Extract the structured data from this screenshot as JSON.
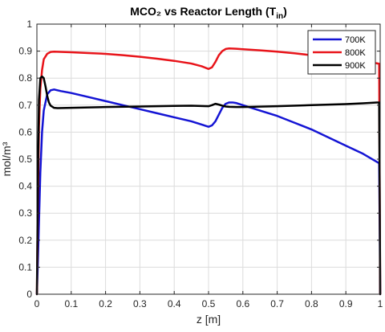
{
  "chart_data": {
    "type": "line",
    "title": "MCO₂ vs Reactor Length (T",
    "title_subscript": "in",
    "title_close": ")",
    "xlabel": "z [m]",
    "ylabel": "mol/m³",
    "xlim": [
      0,
      1
    ],
    "ylim": [
      0,
      1
    ],
    "xticks": [
      0,
      0.1,
      0.2,
      0.3,
      0.4,
      0.5,
      0.6,
      0.7,
      0.8,
      0.9,
      1
    ],
    "xtick_labels": [
      "0",
      "0.1",
      "0.2",
      "0.3",
      "0.4",
      "0.5",
      "0.6",
      "0.7",
      "0.8",
      "0.9",
      "1"
    ],
    "yticks": [
      0,
      0.1,
      0.2,
      0.3,
      0.4,
      0.5,
      0.6,
      0.7,
      0.8,
      0.9,
      1
    ],
    "ytick_labels": [
      "0",
      "0.1",
      "0.2",
      "0.3",
      "0.4",
      "0.5",
      "0.6",
      "0.7",
      "0.8",
      "0.9",
      "1"
    ],
    "grid": true,
    "legend_position": "top-right",
    "series": [
      {
        "name": "700K",
        "color": "#1414d4",
        "x": [
          0,
          0.005,
          0.01,
          0.015,
          0.02,
          0.03,
          0.04,
          0.05,
          0.07,
          0.1,
          0.15,
          0.2,
          0.25,
          0.3,
          0.35,
          0.4,
          0.45,
          0.5,
          0.51,
          0.52,
          0.53,
          0.54,
          0.55,
          0.56,
          0.57,
          0.58,
          0.6,
          0.65,
          0.7,
          0.75,
          0.8,
          0.85,
          0.9,
          0.95,
          0.99,
          0.997,
          0.999,
          1
        ],
        "y": [
          0,
          0.22,
          0.45,
          0.6,
          0.68,
          0.74,
          0.755,
          0.758,
          0.752,
          0.745,
          0.73,
          0.715,
          0.7,
          0.685,
          0.67,
          0.655,
          0.64,
          0.62,
          0.625,
          0.64,
          0.665,
          0.69,
          0.705,
          0.71,
          0.71,
          0.708,
          0.7,
          0.68,
          0.66,
          0.635,
          0.61,
          0.58,
          0.55,
          0.52,
          0.49,
          0.485,
          0.2,
          0
        ]
      },
      {
        "name": "800K",
        "color": "#e8141a",
        "x": [
          0,
          0.003,
          0.006,
          0.01,
          0.015,
          0.02,
          0.03,
          0.04,
          0.05,
          0.1,
          0.15,
          0.2,
          0.25,
          0.3,
          0.35,
          0.4,
          0.45,
          0.48,
          0.5,
          0.51,
          0.52,
          0.53,
          0.54,
          0.55,
          0.56,
          0.58,
          0.6,
          0.65,
          0.7,
          0.75,
          0.8,
          0.85,
          0.9,
          0.95,
          0.99,
          0.997,
          0.999,
          1
        ],
        "y": [
          0,
          0.35,
          0.62,
          0.76,
          0.83,
          0.87,
          0.89,
          0.897,
          0.898,
          0.896,
          0.893,
          0.89,
          0.885,
          0.879,
          0.872,
          0.864,
          0.854,
          0.844,
          0.834,
          0.84,
          0.86,
          0.885,
          0.9,
          0.908,
          0.91,
          0.909,
          0.907,
          0.903,
          0.898,
          0.892,
          0.885,
          0.877,
          0.87,
          0.862,
          0.855,
          0.853,
          0.3,
          0
        ]
      },
      {
        "name": "900K",
        "color": "#000000",
        "x": [
          0,
          0.003,
          0.006,
          0.01,
          0.015,
          0.02,
          0.025,
          0.03,
          0.035,
          0.04,
          0.05,
          0.06,
          0.1,
          0.2,
          0.3,
          0.4,
          0.45,
          0.5,
          0.51,
          0.52,
          0.53,
          0.54,
          0.55,
          0.56,
          0.58,
          0.6,
          0.7,
          0.8,
          0.9,
          0.95,
          0.99,
          0.997,
          0.999,
          1
        ],
        "y": [
          0,
          0.45,
          0.72,
          0.8,
          0.806,
          0.8,
          0.77,
          0.735,
          0.71,
          0.698,
          0.69,
          0.689,
          0.69,
          0.693,
          0.695,
          0.697,
          0.698,
          0.696,
          0.7,
          0.705,
          0.702,
          0.698,
          0.695,
          0.694,
          0.693,
          0.693,
          0.696,
          0.7,
          0.704,
          0.707,
          0.71,
          0.71,
          0.3,
          0
        ]
      }
    ]
  }
}
